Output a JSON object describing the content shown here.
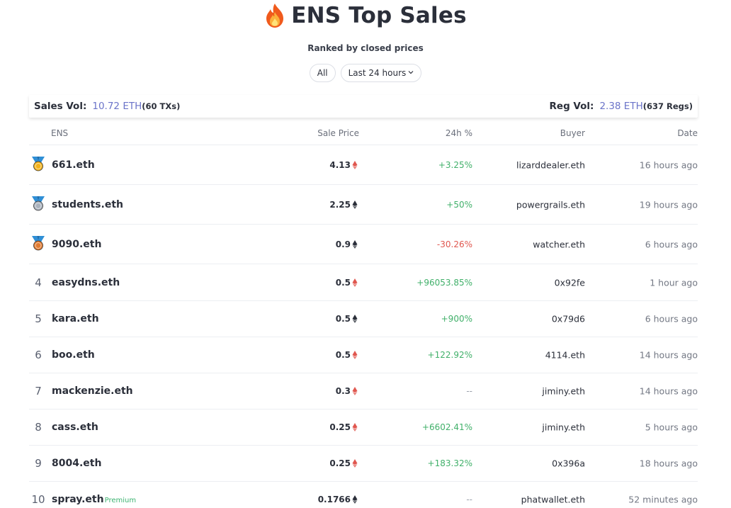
{
  "header": {
    "title": "ENS Top Sales",
    "fire_icon": "fire-icon",
    "subtitle": "Ranked by closed prices"
  },
  "filters": {
    "all_label": "All",
    "period_label": "Last 24 hours"
  },
  "stats": {
    "sales_label": "Sales Vol:",
    "sales_value": "10.72 ETH",
    "sales_count": "(60 TXs)",
    "reg_label": "Reg Vol:",
    "reg_value": "2.38 ETH",
    "reg_count": "(637 Regs)"
  },
  "table": {
    "columns": [
      "ENS",
      "Sale Price",
      "24h %",
      "Buyer",
      "Date"
    ],
    "rows": [
      {
        "rank": "1",
        "medal": "gold",
        "name": "661.eth",
        "premium": "",
        "price": "4.13",
        "eth_color": "red",
        "change": "+3.25%",
        "trend": "pos",
        "buyer": "lizarddealer.eth",
        "date": "16 hours ago"
      },
      {
        "rank": "2",
        "medal": "silver",
        "name": "students.eth",
        "premium": "",
        "price": "2.25",
        "eth_color": "dark",
        "change": "+50%",
        "trend": "pos",
        "buyer": "powergrails.eth",
        "date": "19 hours ago"
      },
      {
        "rank": "3",
        "medal": "bronze",
        "name": "9090.eth",
        "premium": "",
        "price": "0.9",
        "eth_color": "dark",
        "change": "-30.26%",
        "trend": "neg",
        "buyer": "watcher.eth",
        "date": "6 hours ago"
      },
      {
        "rank": "4",
        "medal": "",
        "name": "easydns.eth",
        "premium": "",
        "price": "0.5",
        "eth_color": "red",
        "change": "+96053.85%",
        "trend": "pos",
        "buyer": "0x92fe",
        "date": "1 hour ago"
      },
      {
        "rank": "5",
        "medal": "",
        "name": "kara.eth",
        "premium": "",
        "price": "0.5",
        "eth_color": "dark",
        "change": "+900%",
        "trend": "pos",
        "buyer": "0x79d6",
        "date": "6 hours ago"
      },
      {
        "rank": "6",
        "medal": "",
        "name": "boo.eth",
        "premium": "",
        "price": "0.5",
        "eth_color": "red",
        "change": "+122.92%",
        "trend": "pos",
        "buyer": "4114.eth",
        "date": "14 hours ago"
      },
      {
        "rank": "7",
        "medal": "",
        "name": "mackenzie.eth",
        "premium": "",
        "price": "0.3",
        "eth_color": "red",
        "change": "--",
        "trend": "neu",
        "buyer": "jiminy.eth",
        "date": "14 hours ago"
      },
      {
        "rank": "8",
        "medal": "",
        "name": "cass.eth",
        "premium": "",
        "price": "0.25",
        "eth_color": "red",
        "change": "+6602.41%",
        "trend": "pos",
        "buyer": "jiminy.eth",
        "date": "5 hours ago"
      },
      {
        "rank": "9",
        "medal": "",
        "name": "8004.eth",
        "premium": "",
        "price": "0.25",
        "eth_color": "red",
        "change": "+183.32%",
        "trend": "pos",
        "buyer": "0x396a",
        "date": "18 hours ago"
      },
      {
        "rank": "10",
        "medal": "",
        "name": "spray.eth",
        "premium": "Premium",
        "price": "0.1766",
        "eth_color": "dark",
        "change": "--",
        "trend": "neu",
        "buyer": "phatwallet.eth",
        "date": "52 minutes ago"
      }
    ]
  },
  "colors": {
    "accent": "#6b74c9",
    "positive": "#41b06a",
    "negative": "#e0574f",
    "eth_red": "#e0574f",
    "eth_dark": "#2b2f3a",
    "gold": "#f2b21c",
    "silver": "#aab2bd",
    "bronze": "#e07b32"
  }
}
